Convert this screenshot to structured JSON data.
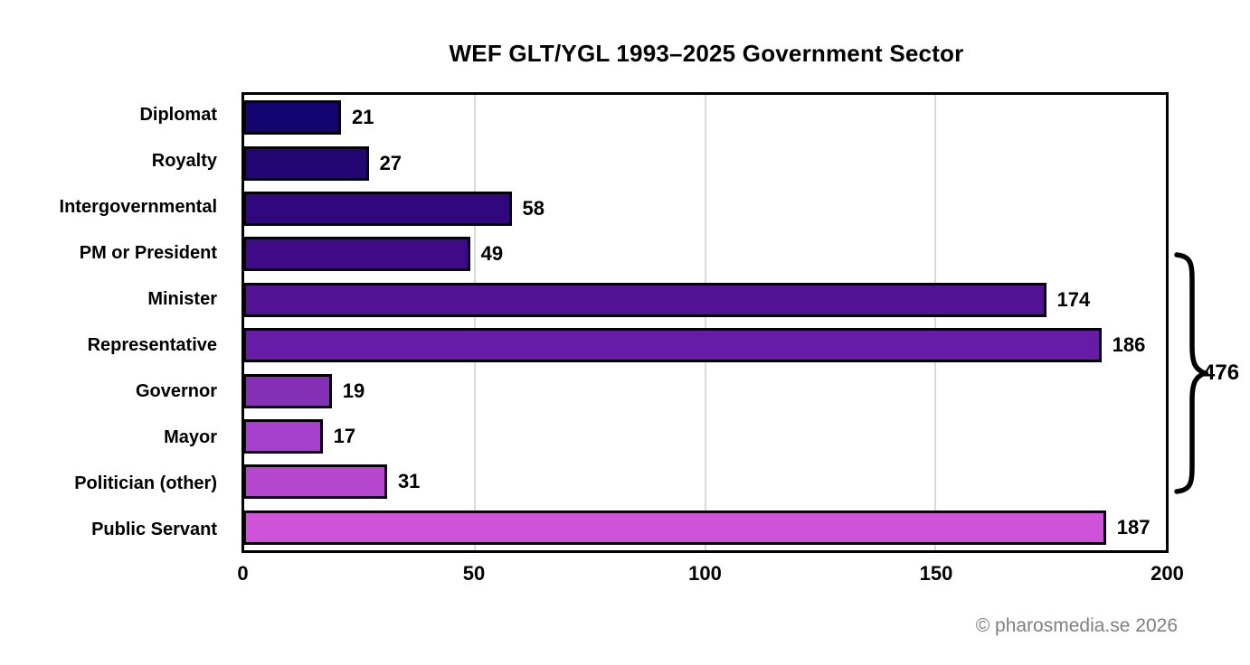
{
  "title": "WEF GLT/YGL 1993–2025 Government Sector",
  "footer": "© pharosmedia.se 2026",
  "colors": {
    "background": "#ffffff",
    "text": "#000000",
    "footer_text": "#7f7f7f",
    "grid": "#d9d9d9",
    "plot_border": "#000000",
    "bar_border": "#000000"
  },
  "chart_data": {
    "type": "bar",
    "orientation": "horizontal",
    "title": "WEF GLT/YGL 1993–2025 Government Sector",
    "categories": [
      "Diplomat",
      "Royalty",
      "Intergovernmental",
      "PM or President",
      "Minister",
      "Representative",
      "Governor",
      "Mayor",
      "Politician (other)",
      "Public Servant"
    ],
    "values": [
      21,
      27,
      58,
      49,
      174,
      186,
      19,
      17,
      31,
      187
    ],
    "bar_colors": [
      "#150570",
      "#240673",
      "#31077e",
      "#400b87",
      "#521396",
      "#661ca6",
      "#8430b5",
      "#a63fcb",
      "#b546ce",
      "#ce53d8"
    ],
    "xlim": [
      0,
      200
    ],
    "x_ticks": [
      0,
      50,
      100,
      150,
      200
    ],
    "gridlines_at": [
      50,
      100,
      150
    ],
    "grid_on": true,
    "value_labels_shown": true,
    "legend": false,
    "annotation": {
      "label": "476",
      "shape": "curly-brace",
      "groups_from_category": "PM or President",
      "groups_to_category": "Politician (other)",
      "group_values": [
        49,
        174,
        186,
        19,
        17,
        31
      ]
    }
  }
}
